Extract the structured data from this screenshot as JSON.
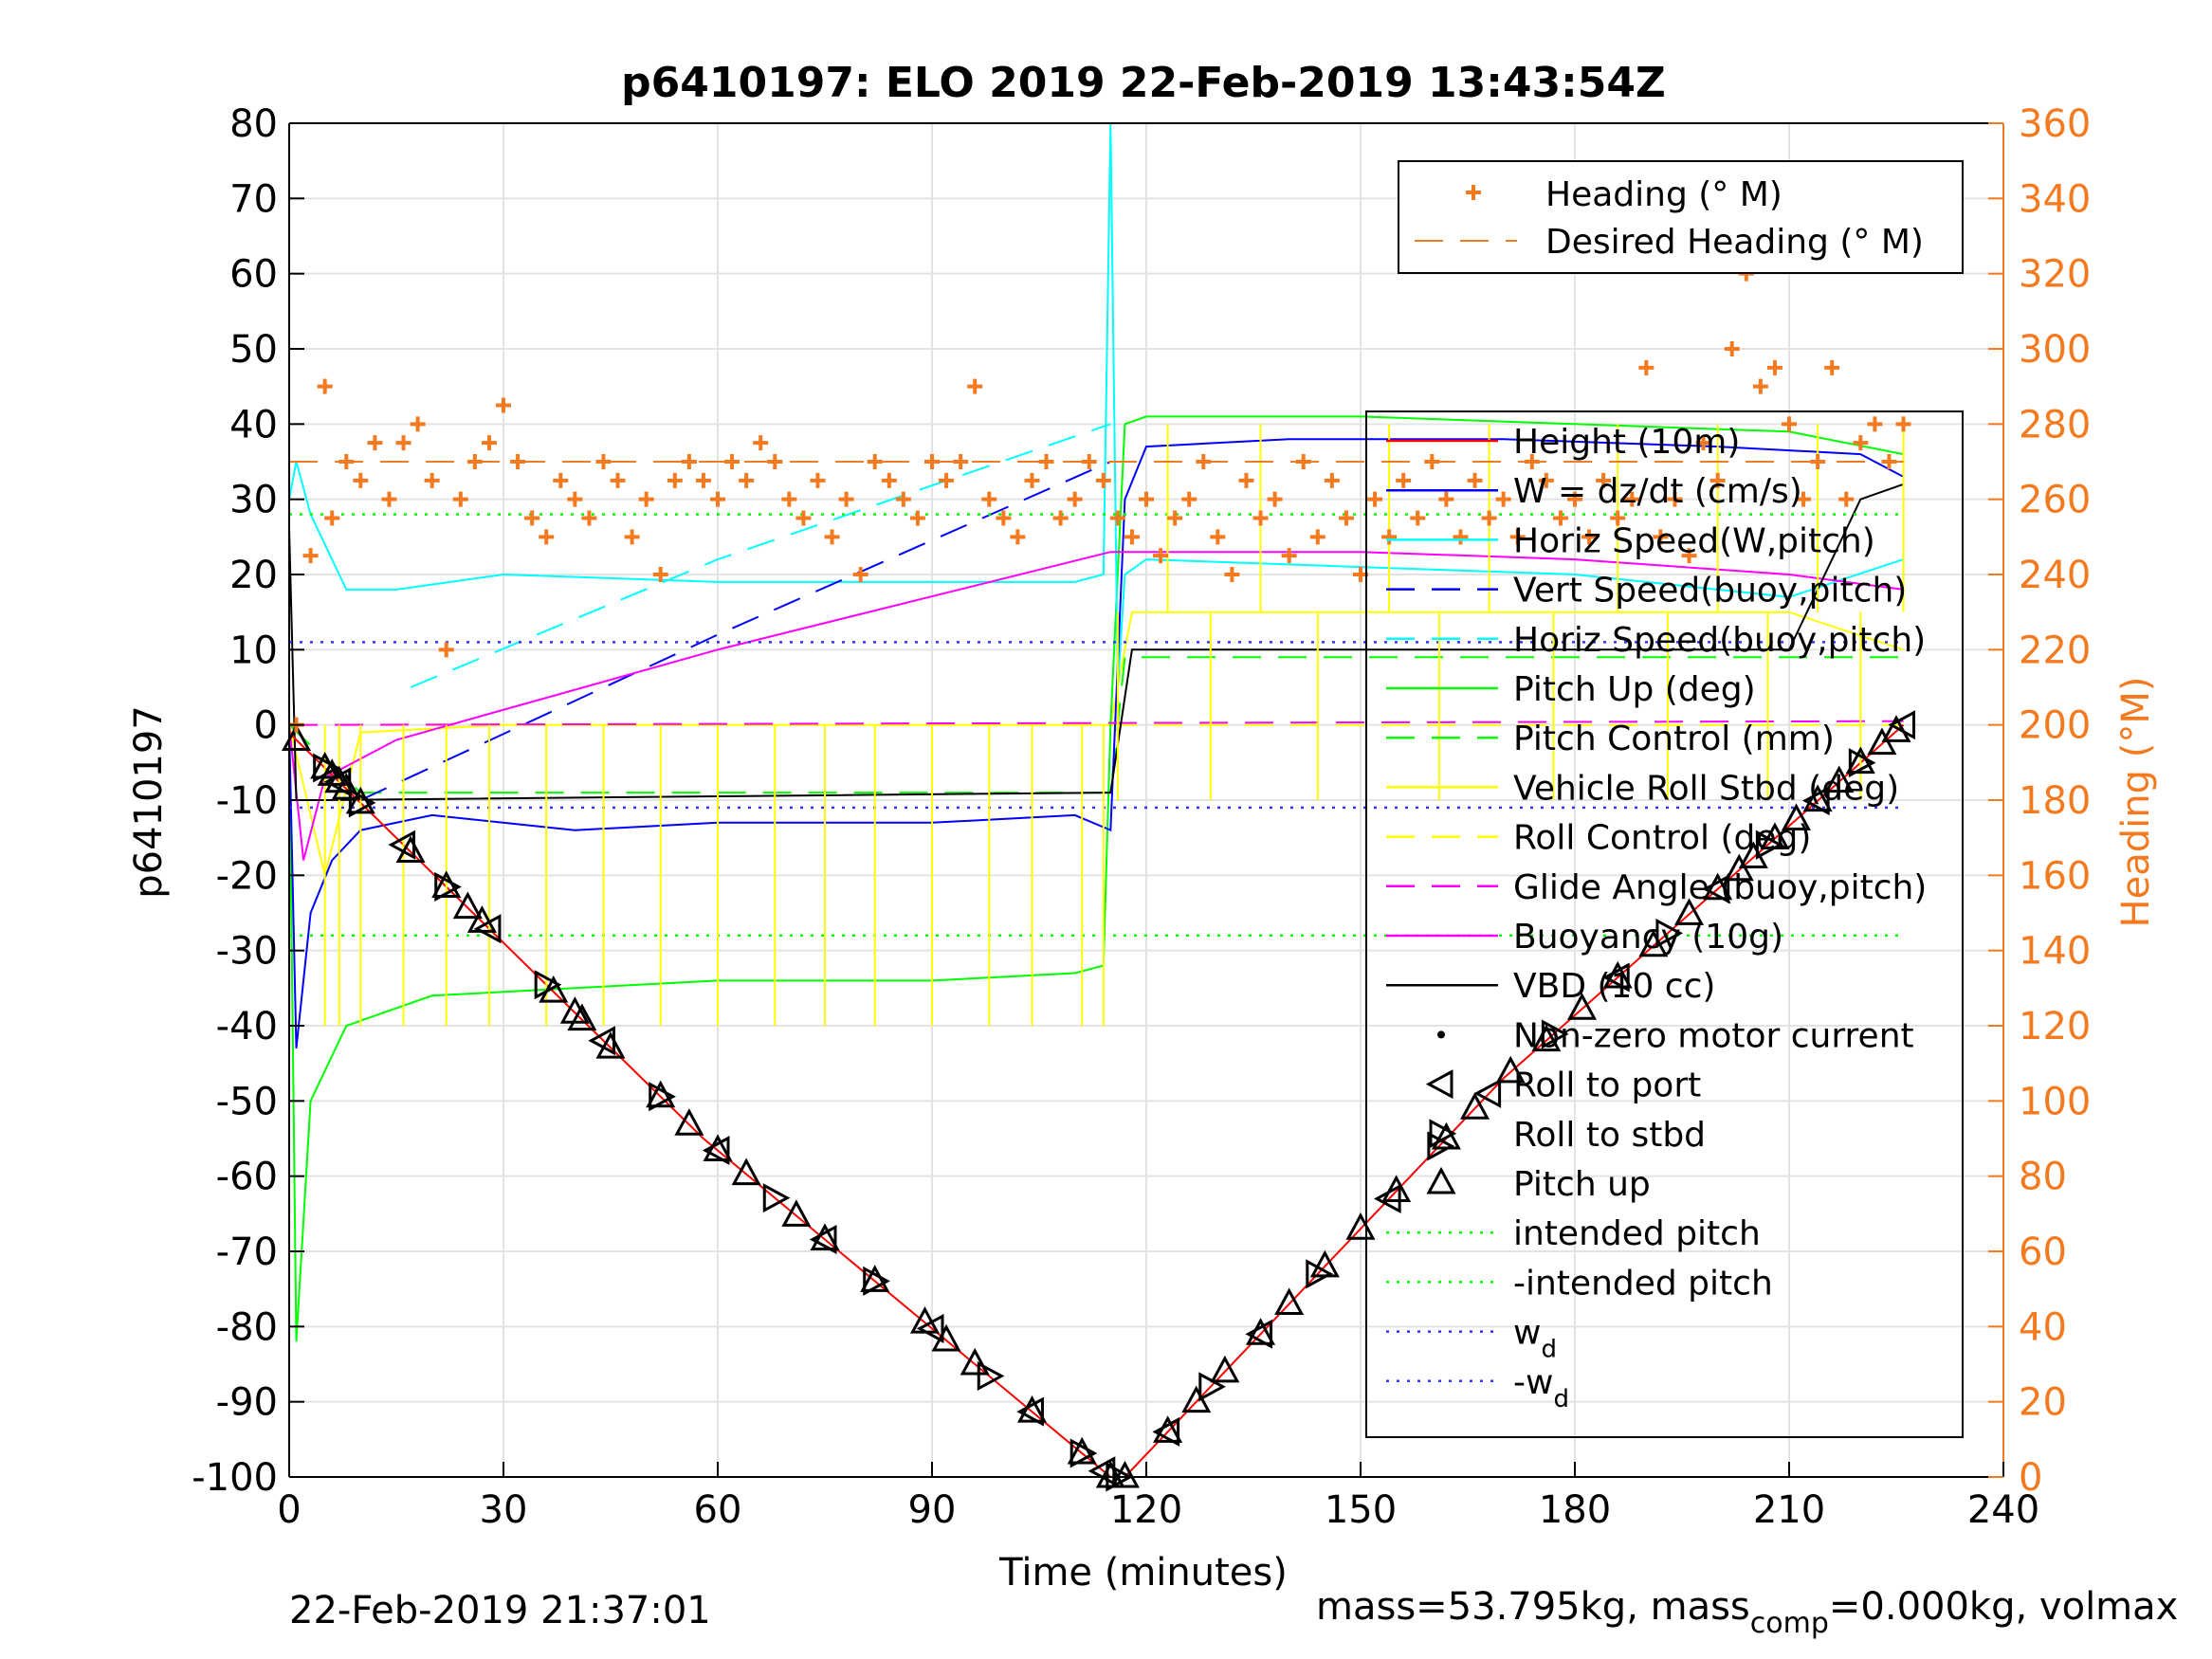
{
  "chart_data": {
    "type": "line",
    "title": "p6410197: ELO 2019 22-Feb-2019 13:43:54Z",
    "xlabel": "Time (minutes)",
    "ylabel": "p6410197",
    "y2label": "Heading (°M)",
    "xlim": [
      0,
      240
    ],
    "ylim": [
      -100,
      80
    ],
    "y2lim": [
      0,
      360
    ],
    "xticks": [
      0,
      30,
      60,
      90,
      120,
      150,
      180,
      210,
      240
    ],
    "yticks": [
      80,
      70,
      60,
      50,
      40,
      30,
      20,
      10,
      0,
      -10,
      -20,
      -30,
      -40,
      -50,
      -60,
      -70,
      -80,
      -90,
      -100
    ],
    "y2ticks": [
      360,
      340,
      320,
      300,
      280,
      260,
      240,
      220,
      200,
      180,
      160,
      140,
      120,
      100,
      80,
      60,
      40,
      20,
      0
    ],
    "grid": true,
    "colors": {
      "heading": "#f47a20",
      "height": "#ff0000",
      "w": "#0000ff",
      "horiz_pitch": "#00ffff",
      "pitch_up": "#00ff00",
      "roll": "#ffff00",
      "glide": "#ff00ff",
      "vbd": "#000000",
      "wd": "#3333ff"
    },
    "legend_right_axis": {
      "placement": "top-right",
      "entries": [
        "Heading (° M)",
        "Desired Heading (° M)"
      ]
    },
    "legend_main": {
      "placement": "right",
      "entries": [
        "Height (10m)",
        "W = dz/dt (cm/s)",
        "Horiz Speed(W,pitch)",
        "Vert Speed(buoy,pitch)",
        "Horiz Speed(buoy,pitch)",
        "Pitch Up (deg)",
        "Pitch Control (mm)",
        "Vehicle Roll Stbd (deg)",
        "Roll Control (deg)",
        "Glide Angle (buoy,pitch)",
        "Buoyancy (10g)",
        "VBD (10 cc)",
        "Non-zero motor current",
        "Roll to port",
        "Roll to stbd",
        "Pitch up",
        "intended pitch",
        "-intended pitch",
        "w",
        "-w"
      ],
      "subscript": "d"
    },
    "series": [
      {
        "name": "Height (10m)",
        "x": [
          0,
          1,
          58,
          115,
          117,
          170,
          226
        ],
        "y": [
          -1,
          -2,
          -55,
          -100,
          -100,
          -47,
          0
        ]
      },
      {
        "name": "W = dz/dt (cm/s)",
        "x": [
          0,
          1,
          3,
          6,
          10,
          20,
          40,
          60,
          90,
          110,
          115,
          117,
          120,
          140,
          170,
          200,
          220,
          226
        ],
        "y": [
          0,
          -43,
          -25,
          -18,
          -14,
          -12,
          -14,
          -13,
          -13,
          -12,
          -14,
          30,
          37,
          38,
          38,
          37,
          36,
          33
        ]
      },
      {
        "name": "Horiz Speed(W,pitch)",
        "x": [
          0,
          1,
          3,
          8,
          15,
          30,
          60,
          90,
          110,
          114,
          115,
          116,
          117,
          120,
          150,
          180,
          210,
          226
        ],
        "y": [
          30,
          35,
          28,
          18,
          18,
          20,
          19,
          19,
          19,
          20,
          80,
          5,
          20,
          22,
          21,
          20,
          17,
          22
        ]
      },
      {
        "name": "Vert Speed(buoy,pitch)",
        "x": [
          10,
          60,
          115
        ],
        "y": [
          -10,
          12,
          35
        ]
      },
      {
        "name": "Horiz Speed(buoy,pitch)",
        "x": [
          17,
          60,
          115
        ],
        "y": [
          5,
          22,
          40
        ]
      },
      {
        "name": "Pitch Up (deg)",
        "x": [
          0,
          1,
          3,
          8,
          20,
          40,
          60,
          90,
          110,
          114,
          115,
          117,
          120,
          150,
          180,
          210,
          226
        ],
        "y": [
          0,
          -82,
          -50,
          -40,
          -36,
          -35,
          -34,
          -34,
          -33,
          -32,
          0,
          40,
          41,
          41,
          40,
          39,
          36
        ]
      },
      {
        "name": "Pitch Control (mm)",
        "x": [
          0,
          10,
          115,
          117,
          226
        ],
        "y": [
          0,
          -9,
          -9,
          9,
          9
        ]
      },
      {
        "name": "Vehicle Roll Stbd (deg)",
        "x": [
          0,
          5,
          10,
          30,
          60,
          90,
          115,
          118,
          150,
          180,
          210,
          226
        ],
        "y": [
          0,
          -20,
          -1,
          0,
          0,
          0,
          0,
          15,
          15,
          15,
          15,
          10
        ]
      },
      {
        "name": "Roll Control (deg)",
        "x": [
          0,
          115,
          117,
          226
        ],
        "y": [
          0,
          0,
          0,
          0
        ]
      },
      {
        "name": "Glide Angle (buoy,pitch)",
        "x": [
          0,
          226
        ],
        "y": [
          0,
          0.5
        ]
      },
      {
        "name": "Buoyancy (10g)",
        "x": [
          0,
          2,
          5,
          15,
          60,
          115,
          150,
          180,
          210,
          226
        ],
        "y": [
          0,
          -18,
          -7,
          -2,
          10,
          23,
          23,
          22,
          20,
          18
        ]
      },
      {
        "name": "VBD (10 cc)",
        "x": [
          0,
          1,
          5,
          60,
          115,
          118,
          150,
          210,
          220,
          226
        ],
        "y": [
          26,
          -10,
          -10,
          -9.5,
          -9,
          10,
          10,
          10,
          30,
          32
        ]
      },
      {
        "name": "intended pitch",
        "x": [
          0,
          226
        ],
        "y": [
          28,
          28
        ]
      },
      {
        "name": "-intended pitch",
        "x": [
          0,
          226
        ],
        "y": [
          -28,
          -28
        ]
      },
      {
        "name": "wd",
        "x": [
          0,
          226
        ],
        "y": [
          11,
          11
        ]
      },
      {
        "name": "-wd",
        "x": [
          0,
          226
        ],
        "y": [
          -11,
          -11
        ]
      }
    ],
    "heading_series": {
      "name": "Heading (° M)",
      "x": [
        1,
        3,
        5,
        6,
        8,
        10,
        12,
        14,
        16,
        18,
        20,
        22,
        24,
        26,
        28,
        30,
        32,
        34,
        36,
        38,
        40,
        42,
        44,
        46,
        48,
        50,
        52,
        54,
        56,
        58,
        60,
        62,
        64,
        66,
        68,
        70,
        72,
        74,
        76,
        78,
        80,
        82,
        84,
        86,
        88,
        90,
        92,
        94,
        96,
        98,
        100,
        102,
        104,
        106,
        108,
        110,
        112,
        114,
        116,
        118,
        120,
        122,
        124,
        126,
        128,
        130,
        132,
        134,
        136,
        138,
        140,
        142,
        144,
        146,
        148,
        150,
        152,
        154,
        156,
        158,
        160,
        162,
        164,
        166,
        168,
        170,
        172,
        174,
        176,
        178,
        180,
        182,
        184,
        186,
        188,
        190,
        192,
        194,
        196,
        198,
        200,
        202,
        204,
        206,
        208,
        210,
        212,
        214,
        216,
        218,
        220,
        222,
        224,
        226
      ],
      "y": [
        200,
        245,
        290,
        255,
        270,
        265,
        275,
        260,
        275,
        280,
        265,
        220,
        260,
        270,
        275,
        285,
        270,
        255,
        250,
        265,
        260,
        255,
        270,
        265,
        250,
        260,
        240,
        265,
        270,
        265,
        260,
        270,
        265,
        275,
        270,
        260,
        255,
        265,
        250,
        260,
        240,
        270,
        265,
        260,
        255,
        270,
        265,
        270,
        290,
        260,
        255,
        250,
        265,
        270,
        255,
        260,
        270,
        265,
        255,
        250,
        260,
        245,
        255,
        260,
        270,
        250,
        240,
        265,
        255,
        260,
        245,
        270,
        250,
        265,
        255,
        240,
        260,
        250,
        265,
        255,
        270,
        260,
        250,
        265,
        255,
        260,
        250,
        270,
        265,
        255,
        260,
        250,
        265,
        255,
        260,
        295,
        250,
        260,
        245,
        275,
        265,
        300,
        320,
        290,
        295,
        280,
        260,
        270,
        295,
        260,
        275,
        280,
        270,
        280
      ]
    },
    "desired_heading": {
      "name": "Desired Heading (° M)",
      "x": [
        0,
        226
      ],
      "y": [
        270,
        270
      ]
    },
    "pitch_up_markers_x": [
      1,
      5,
      6,
      7,
      8,
      10,
      17,
      22,
      25,
      27,
      37,
      40,
      41,
      45,
      52,
      56,
      60,
      64,
      71,
      75,
      82,
      89,
      92,
      96,
      104,
      111,
      115,
      117,
      123,
      127,
      131,
      136,
      140,
      145,
      150,
      155,
      162,
      166,
      171,
      176,
      181,
      186,
      191,
      196,
      200,
      203,
      205,
      208,
      211,
      214,
      217,
      220,
      223,
      225
    ],
    "roll_markers_x": [
      5,
      7,
      10,
      16,
      22,
      28,
      36,
      44,
      52,
      60,
      68,
      75,
      82,
      90,
      98,
      104,
      111,
      114,
      116,
      123,
      129,
      136,
      144,
      154,
      161,
      168,
      177,
      186,
      193,
      200,
      207,
      214,
      220,
      226
    ],
    "axes_frame_color": "#000000"
  },
  "footer": {
    "timestamp": "22-Feb-2019 21:37:01",
    "mass_text": "mass=53.795kg, mass",
    "mass_sub": "comp",
    "mass_rest": "=0.000kg, volmax"
  }
}
